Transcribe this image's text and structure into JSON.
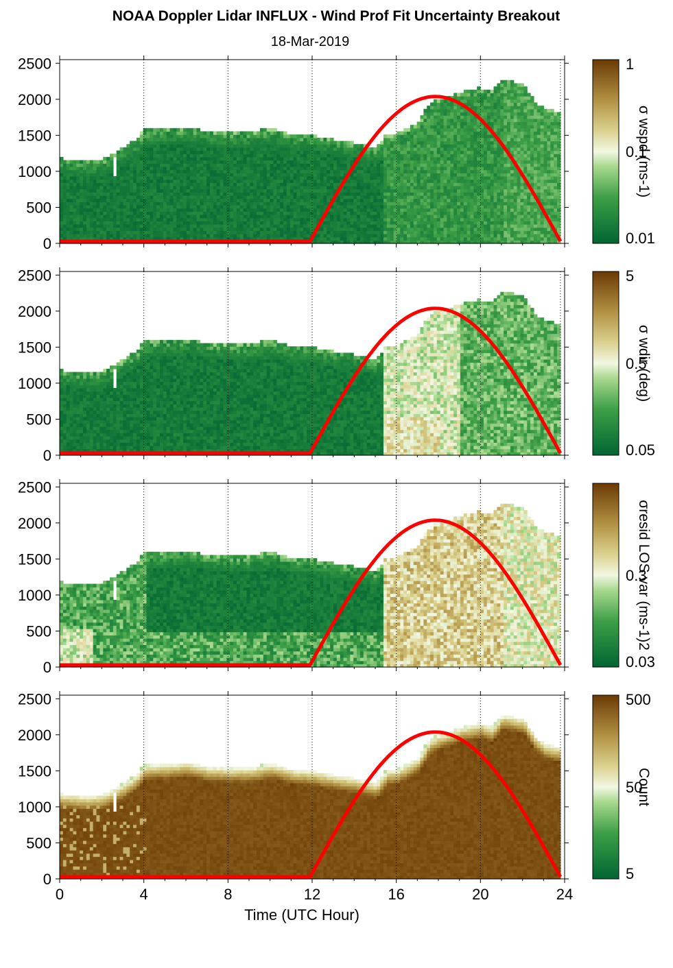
{
  "title": "NOAA Doppler Lidar INFLUX - Wind Prof Fit Uncertainty Breakout",
  "subtitle": "18-Mar-2019",
  "colors": {
    "low": "#006633",
    "mid": "#f2f7e2",
    "high": "#6b3a03",
    "sun_curve": "#ff0000",
    "no_data": "#ffffff"
  },
  "chart_data": [
    {
      "type": "heatmap",
      "panel": "wind speed uncertainty",
      "xlabel": "",
      "ylabel": "",
      "xlim": [
        0,
        24
      ],
      "ylim": [
        0,
        2550
      ],
      "xticks": [
        0,
        4,
        8,
        12,
        16,
        20,
        24
      ],
      "yticks": [
        0,
        500,
        1000,
        1500,
        2000,
        2500
      ],
      "grid": "dotted vertical lines every 4 h",
      "colorbar": {
        "label": "σ wspd (ms-1)",
        "tick_labels": [
          "0.01",
          "0.1",
          "1"
        ],
        "scale": "log"
      },
      "sun_elevation_curve": {
        "start_hour": 11.9,
        "peak_hour": 17.9,
        "peak_height": 2010,
        "end_hour": 23.8
      }
    },
    {
      "type": "heatmap",
      "panel": "wind direction uncertainty",
      "xlabel": "",
      "ylabel": "",
      "xlim": [
        0,
        24
      ],
      "ylim": [
        0,
        2550
      ],
      "xticks": [
        0,
        4,
        8,
        12,
        16,
        20,
        24
      ],
      "yticks": [
        0,
        500,
        1000,
        1500,
        2000,
        2500
      ],
      "grid": "dotted vertical lines every 4 h",
      "colorbar": {
        "label": "σ wdir (deg)",
        "tick_labels": [
          "0.05",
          "0.5",
          "5"
        ],
        "scale": "log"
      },
      "sun_elevation_curve": {
        "start_hour": 11.9,
        "peak_hour": 17.9,
        "peak_height": 2010,
        "end_hour": 23.8
      }
    },
    {
      "type": "heatmap",
      "panel": "residual LOS variance",
      "xlabel": "",
      "ylabel": "",
      "xlim": [
        0,
        24
      ],
      "ylim": [
        0,
        2550
      ],
      "xticks": [
        0,
        4,
        8,
        12,
        16,
        20,
        24
      ],
      "yticks": [
        0,
        500,
        1000,
        1500,
        2000,
        2500
      ],
      "grid": "dotted vertical lines every 4 h",
      "colorbar": {
        "label": "σresid LOS var (ms-1)2",
        "tick_labels": [
          "0.03",
          "0.3",
          ""
        ],
        "scale": "log"
      },
      "sun_elevation_curve": {
        "start_hour": 11.9,
        "peak_hour": 17.9,
        "peak_height": 2010,
        "end_hour": 23.8
      }
    },
    {
      "type": "heatmap",
      "panel": "count",
      "xlabel": "Time (UTC Hour)",
      "ylabel": "",
      "xlim": [
        0,
        24
      ],
      "ylim": [
        0,
        2550
      ],
      "xticks": [
        0,
        4,
        8,
        12,
        16,
        20,
        24
      ],
      "yticks": [
        0,
        500,
        1000,
        1500,
        2000,
        2500
      ],
      "grid": "dotted vertical lines every 4 h",
      "colorbar": {
        "label": "Count",
        "tick_labels": [
          "5",
          "50",
          "500"
        ],
        "scale": "log"
      },
      "sun_elevation_curve": {
        "start_hour": 11.9,
        "peak_hour": 17.9,
        "peak_height": 2010,
        "end_hour": 23.8
      }
    }
  ]
}
